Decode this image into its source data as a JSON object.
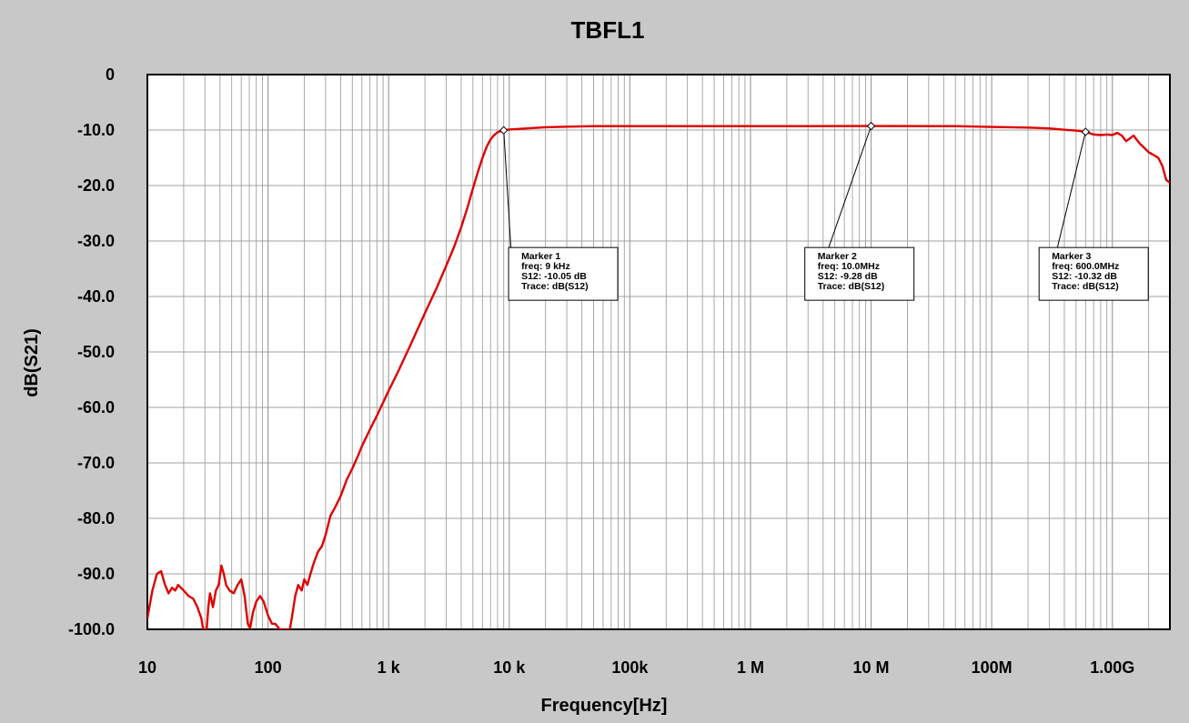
{
  "chart_data": {
    "type": "line",
    "title": "TBFL1",
    "xlabel": "Frequency[Hz]",
    "ylabel": "dB(S21)",
    "x_scale": "log",
    "xlim": [
      10,
      3000000000
    ],
    "ylim": [
      -100,
      0
    ],
    "grid": true,
    "colors": {
      "background": "#c8c8c8",
      "plot_bg": "#ffffff",
      "grid": "#a0a0a0",
      "trace": "#e00000"
    },
    "xticks": [
      {
        "value": 10,
        "label": "10"
      },
      {
        "value": 100,
        "label": "100"
      },
      {
        "value": 1000,
        "label": "1  k"
      },
      {
        "value": 10000,
        "label": "10 k"
      },
      {
        "value": 100000,
        "label": "100k"
      },
      {
        "value": 1000000,
        "label": "1  M"
      },
      {
        "value": 10000000,
        "label": "10 M"
      },
      {
        "value": 100000000,
        "label": "100M"
      },
      {
        "value": 1000000000,
        "label": "1.00G"
      }
    ],
    "yticks": [
      {
        "value": 0,
        "label": "0"
      },
      {
        "value": -10,
        "label": "-10.0"
      },
      {
        "value": -20,
        "label": "-20.0"
      },
      {
        "value": -30,
        "label": "-30.0"
      },
      {
        "value": -40,
        "label": "-40.0"
      },
      {
        "value": -50,
        "label": "-50.0"
      },
      {
        "value": -60,
        "label": "-60.0"
      },
      {
        "value": -70,
        "label": "-70.0"
      },
      {
        "value": -80,
        "label": "-80.0"
      },
      {
        "value": -90,
        "label": "-90.0"
      },
      {
        "value": -100,
        "label": "-100.0"
      }
    ],
    "series": [
      {
        "color": "#e00000",
        "points": [
          [
            10,
            -98
          ],
          [
            11,
            -93
          ],
          [
            12,
            -90
          ],
          [
            13,
            -89.5
          ],
          [
            14,
            -92
          ],
          [
            15,
            -93.5
          ],
          [
            16,
            -92.5
          ],
          [
            17,
            -93
          ],
          [
            18,
            -92
          ],
          [
            20,
            -93
          ],
          [
            22,
            -94
          ],
          [
            24,
            -94.5
          ],
          [
            26,
            -96
          ],
          [
            28,
            -98
          ],
          [
            29,
            -100
          ],
          [
            31,
            -100
          ],
          [
            32,
            -96
          ],
          [
            33,
            -93.5
          ],
          [
            35,
            -96
          ],
          [
            37,
            -93
          ],
          [
            39,
            -92
          ],
          [
            41,
            -88.5
          ],
          [
            43,
            -90
          ],
          [
            45,
            -92
          ],
          [
            48,
            -93
          ],
          [
            52,
            -93.5
          ],
          [
            56,
            -92
          ],
          [
            60,
            -91
          ],
          [
            64,
            -94
          ],
          [
            68,
            -99
          ],
          [
            71,
            -99.8
          ],
          [
            75,
            -97
          ],
          [
            80,
            -95
          ],
          [
            86,
            -94
          ],
          [
            92,
            -95
          ],
          [
            100,
            -97.5
          ],
          [
            108,
            -99
          ],
          [
            115,
            -99
          ],
          [
            125,
            -100
          ],
          [
            152,
            -100
          ],
          [
            160,
            -97
          ],
          [
            168,
            -94
          ],
          [
            178,
            -92
          ],
          [
            190,
            -93
          ],
          [
            200,
            -91
          ],
          [
            212,
            -92
          ],
          [
            225,
            -90
          ],
          [
            240,
            -88
          ],
          [
            260,
            -86
          ],
          [
            280,
            -85
          ],
          [
            300,
            -83
          ],
          [
            330,
            -79.5
          ],
          [
            360,
            -78
          ],
          [
            400,
            -76
          ],
          [
            450,
            -73
          ],
          [
            500,
            -71
          ],
          [
            550,
            -69
          ],
          [
            600,
            -67
          ],
          [
            700,
            -64
          ],
          [
            800,
            -61.5
          ],
          [
            1000,
            -57
          ],
          [
            1200,
            -53.5
          ],
          [
            1500,
            -49
          ],
          [
            2000,
            -43
          ],
          [
            2500,
            -38.5
          ],
          [
            3000,
            -34.5
          ],
          [
            3500,
            -31
          ],
          [
            4000,
            -27.5
          ],
          [
            4500,
            -24
          ],
          [
            5000,
            -20.5
          ],
          [
            5500,
            -17.5
          ],
          [
            6000,
            -15
          ],
          [
            6500,
            -13
          ],
          [
            7000,
            -11.7
          ],
          [
            7500,
            -10.9
          ],
          [
            8000,
            -10.4
          ],
          [
            9000,
            -10.05
          ],
          [
            10000,
            -9.9
          ],
          [
            15000,
            -9.65
          ],
          [
            20000,
            -9.5
          ],
          [
            30000,
            -9.4
          ],
          [
            50000,
            -9.3
          ],
          [
            100000,
            -9.3
          ],
          [
            1000000,
            -9.29
          ],
          [
            10000000,
            -9.28
          ],
          [
            50000000,
            -9.3
          ],
          [
            100000000,
            -9.45
          ],
          [
            200000000,
            -9.55
          ],
          [
            300000000,
            -9.7
          ],
          [
            400000000,
            -9.95
          ],
          [
            500000000,
            -10.1
          ],
          [
            600000000,
            -10.32
          ],
          [
            700000000,
            -10.8
          ],
          [
            800000000,
            -10.9
          ],
          [
            900000000,
            -10.8
          ],
          [
            1000000000,
            -10.9
          ],
          [
            1100000000,
            -10.5
          ],
          [
            1200000000,
            -11
          ],
          [
            1300000000,
            -12
          ],
          [
            1400000000,
            -11.5
          ],
          [
            1500000000,
            -11
          ],
          [
            1600000000,
            -11.8
          ],
          [
            1700000000,
            -12.5
          ],
          [
            1800000000,
            -13
          ],
          [
            2000000000,
            -14
          ],
          [
            2200000000,
            -14.5
          ],
          [
            2400000000,
            -15
          ],
          [
            2600000000,
            -16.5
          ],
          [
            2800000000,
            -19
          ],
          [
            3000000000,
            -19.5
          ]
        ]
      }
    ],
    "markers": [
      {
        "name": "Marker 1",
        "freq_text": "freq: 9  kHz",
        "value_text": "S12: -10.05 dB",
        "trace_text": "Trace: dB(S12)",
        "x": 9000,
        "y": -10.05,
        "box_x": 28000,
        "box_y": -31.5
      },
      {
        "name": "Marker 2",
        "freq_text": "freq: 10.0MHz",
        "value_text": "S12: -9.28 dB",
        "trace_text": "Trace: dB(S12)",
        "x": 10000000,
        "y": -9.28,
        "box_x": 8000000,
        "box_y": -31.5
      },
      {
        "name": "Marker 3",
        "freq_text": "freq: 600.0MHz",
        "value_text": "S12: -10.32 dB",
        "trace_text": "Trace: dB(S12)",
        "x": 600000000,
        "y": -10.32,
        "box_x": 700000000,
        "box_y": -31.5
      }
    ]
  }
}
